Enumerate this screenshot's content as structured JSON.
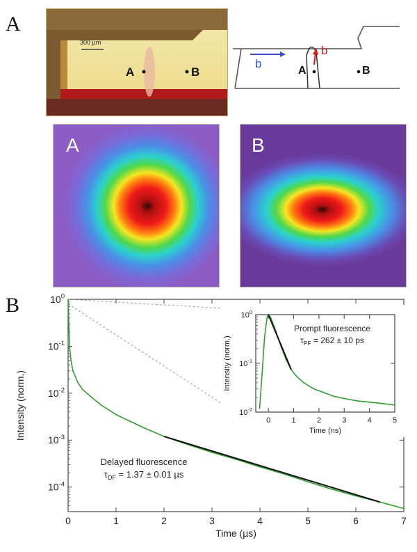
{
  "panel_labels": {
    "a": "A",
    "b": "B"
  },
  "photo": {
    "scale_bar_label": "300 µm",
    "point_a": "A",
    "point_b": "B"
  },
  "schematic": {
    "polarization_b_blue": "b",
    "polarization_b_red": "b",
    "point_a": "A",
    "point_b": "B",
    "blue_color": "#3a4fd0",
    "red_color": "#e01818"
  },
  "beam_profiles": [
    {
      "label": "A",
      "shape": "round"
    },
    {
      "label": "B",
      "shape": "elliptical"
    }
  ],
  "chart_data": [
    {
      "type": "line",
      "xlabel": "Time (µs)",
      "ylabel": "Intensity (norm.)",
      "xlim": [
        0,
        7
      ],
      "ylim": [
        3e-05,
        1
      ],
      "yscale": "log",
      "xticks": [
        0,
        1,
        2,
        3,
        4,
        5,
        6,
        7
      ],
      "yticks": [
        "10^0",
        "10^-1",
        "10^-2",
        "10^-3",
        "10^-4"
      ],
      "series": [
        {
          "color": "#2ea02e",
          "x": [
            0,
            0.03,
            0.06,
            0.1,
            0.2,
            0.3,
            0.5,
            0.7,
            1.0,
            1.3,
            1.6,
            2.0,
            2.5,
            3.0,
            3.5,
            4.0,
            4.5,
            5.0,
            5.5,
            6.0,
            6.5,
            7.0
          ],
          "y": [
            1.0,
            0.1,
            0.05,
            0.03,
            0.017,
            0.012,
            0.008,
            0.0055,
            0.0035,
            0.0025,
            0.0018,
            0.0012,
            0.0008,
            0.00055,
            0.00039,
            0.00027,
            0.00019,
            0.00013,
            9e-05,
            6.5e-05,
            4.8e-05,
            3.5e-05
          ]
        }
      ],
      "fit": {
        "color": "#111111",
        "x": [
          2.0,
          6.5
        ],
        "y": [
          0.0012,
          4.8e-05
        ]
      },
      "annotation": {
        "title": "Delayed fluorescence",
        "tau_symbol": "τ",
        "tau_subscript": "DF",
        "tau_value": " = 1.37 ± 0.01 µs"
      }
    },
    {
      "type": "line",
      "xlabel": "Time (ns)",
      "ylabel": "Intensity (norm.)",
      "xlim": [
        -0.5,
        5
      ],
      "ylim": [
        0.01,
        1
      ],
      "yscale": "log",
      "xticks": [
        0,
        1,
        2,
        3,
        4,
        5
      ],
      "yticks": [
        "10^0",
        "10^-1",
        "10^-2"
      ],
      "series": [
        {
          "color": "#2ea02e",
          "x": [
            -0.35,
            -0.25,
            -0.15,
            -0.05,
            0.0,
            0.1,
            0.3,
            0.5,
            0.7,
            0.9,
            1.1,
            1.4,
            1.8,
            2.2,
            2.6,
            3.0,
            3.5,
            4.0,
            4.5,
            5.0
          ],
          "y": [
            0.012,
            0.06,
            0.35,
            0.9,
            1.0,
            0.85,
            0.45,
            0.22,
            0.12,
            0.075,
            0.055,
            0.04,
            0.03,
            0.025,
            0.021,
            0.019,
            0.017,
            0.016,
            0.015,
            0.014
          ]
        }
      ],
      "fit": {
        "color": "#111111",
        "x": [
          0.0,
          0.9
        ],
        "y": [
          1.0,
          0.075
        ]
      },
      "annotation": {
        "title": "Prompt fluorescence",
        "tau_symbol": "τ",
        "tau_subscript": "PF",
        "tau_value": " = 262 ± 10 ps"
      }
    }
  ]
}
